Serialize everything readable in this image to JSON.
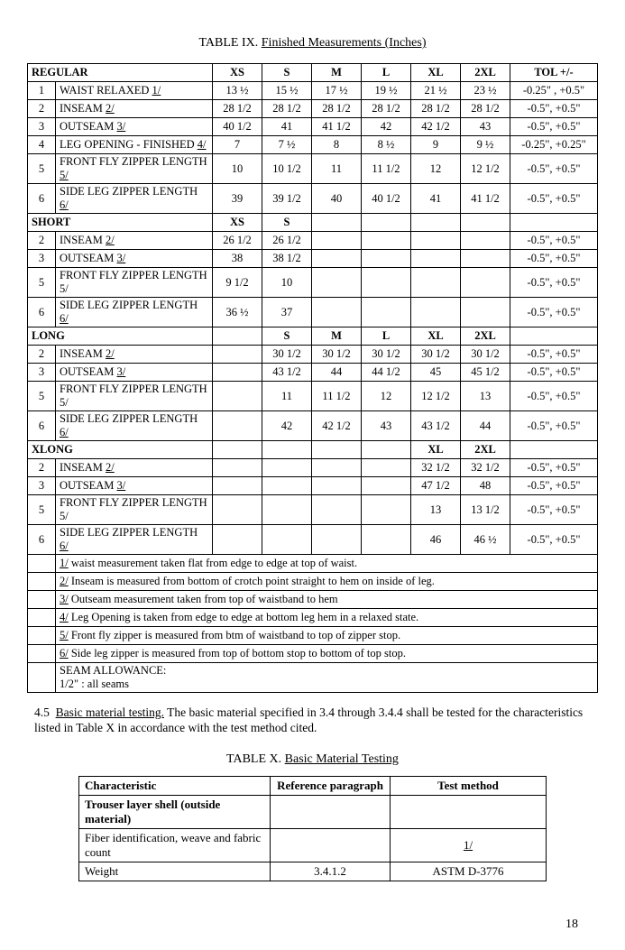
{
  "table9": {
    "title_prefix": "TABLE IX.",
    "title": "Finished Measurements (Inches)",
    "size_headers": [
      "XS",
      "S",
      "M",
      "L",
      "XL",
      "2XL"
    ],
    "tol_header": "TOL +/-",
    "sections": [
      {
        "name": "REGULAR",
        "show_sizes": [
          true,
          true,
          true,
          true,
          true,
          true
        ],
        "rows": [
          {
            "n": "1",
            "label": "WAIST RELAXED  1/",
            "uline": "1/",
            "v": [
              "13 ½",
              "15 ½",
              "17 ½",
              "19 ½",
              "21 ½",
              "23 ½"
            ],
            "tol": "-0.25\" , +0.5\""
          },
          {
            "n": "2",
            "label": "INSEAM    2/",
            "uline": "2/",
            "v": [
              "28 1/2",
              "28 1/2",
              "28 1/2",
              "28 1/2",
              "28 1/2",
              "28 1/2"
            ],
            "tol": "-0.5\", +0.5\""
          },
          {
            "n": "3",
            "label": "OUTSEAM   3/",
            "uline": "3/",
            "v": [
              "40 1/2",
              "41",
              "41 1/2",
              "42",
              "42 1/2",
              "43"
            ],
            "tol": "-0.5\", +0.5\""
          },
          {
            "n": "4",
            "label": "LEG OPENING  - FINISHED  4/",
            "uline": "4/",
            "v": [
              "7",
              "7 ½",
              "8",
              "8 ½",
              "9",
              "9 ½"
            ],
            "tol": "-0.25\", +0.25\""
          },
          {
            "n": "5",
            "label": "FRONT FLY ZIPPER LENGTH  5/",
            "uline": "5/",
            "v": [
              "10",
              "10 1/2",
              "11",
              "11 1/2",
              "12",
              "12 1/2"
            ],
            "tol": "-0.5\", +0.5\""
          },
          {
            "n": "6",
            "label": "SIDE LEG ZIPPER LENGTH  6/",
            "uline": "6/",
            "v": [
              "39",
              "39 1/2",
              "40",
              "40 1/2",
              "41",
              "41 1/2"
            ],
            "tol": "-0.5\", +0.5\""
          }
        ]
      },
      {
        "name": "SHORT",
        "show_sizes": [
          true,
          true,
          false,
          false,
          false,
          false
        ],
        "rows": [
          {
            "n": "2",
            "label": "INSEAM    2/",
            "uline": "2/",
            "v": [
              "26 1/2",
              "26 1/2",
              "",
              "",
              "",
              ""
            ],
            "tol": "-0.5\", +0.5\""
          },
          {
            "n": "3",
            "label": "OUTSEAM  3/",
            "uline": "3/",
            "v": [
              "38",
              "38 1/2",
              "",
              "",
              "",
              ""
            ],
            "tol": "-0.5\", +0.5\""
          },
          {
            "n": "5",
            "label": "FRONT FLY ZIPPER LENGTH  5/",
            "uline": "",
            "v": [
              "9 1/2",
              "10",
              "",
              "",
              "",
              ""
            ],
            "tol": "-0.5\", +0.5\""
          },
          {
            "n": "6",
            "label": "SIDE LEG ZIPPER LENGTH  6/",
            "uline": "6/",
            "v": [
              "36 ½",
              "37",
              "",
              "",
              "",
              ""
            ],
            "tol": "-0.5\", +0.5\""
          }
        ]
      },
      {
        "name": "LONG",
        "show_sizes": [
          false,
          true,
          true,
          true,
          true,
          true
        ],
        "rows": [
          {
            "n": "2",
            "label": "INSEAM    2/",
            "uline": "2/",
            "v": [
              "",
              "30 1/2",
              "30 1/2",
              "30 1/2",
              "30 1/2",
              "30 1/2"
            ],
            "tol": "-0.5\", +0.5\""
          },
          {
            "n": "3",
            "label": "OUTSEAM  3/",
            "uline": "3/",
            "v": [
              "",
              "43 1/2",
              "44",
              "44 1/2",
              "45",
              "45 1/2"
            ],
            "tol": "-0.5\", +0.5\""
          },
          {
            "n": "5",
            "label": "FRONT FLY ZIPPER LENGTH  5/",
            "uline": "",
            "v": [
              "",
              "11",
              "11 1/2",
              "12",
              "12 1/2",
              "13"
            ],
            "tol": "-0.5\", +0.5\""
          },
          {
            "n": "6",
            "label": "SIDE LEG ZIPPER LENGTH  6/",
            "uline": "6/",
            "v": [
              "",
              "42",
              "42 1/2",
              "43",
              "43 1/2",
              "44"
            ],
            "tol": "-0.5\", +0.5\""
          }
        ]
      },
      {
        "name": "XLONG",
        "show_sizes": [
          false,
          false,
          false,
          false,
          true,
          true
        ],
        "rows": [
          {
            "n": "2",
            "label": "INSEAM    2/",
            "uline": "2/",
            "v": [
              "",
              "",
              "",
              "",
              "32 1/2",
              "32 1/2"
            ],
            "tol": "-0.5\", +0.5\""
          },
          {
            "n": "3",
            "label": "OUTSEAM   3/",
            "uline": "3/",
            "v": [
              "",
              "",
              "",
              "",
              "47 1/2",
              "48"
            ],
            "tol": "-0.5\", +0.5\""
          },
          {
            "n": "5",
            "label": "FRONT FLY ZIPPER LENGTH  5/",
            "uline": "",
            "v": [
              "",
              "",
              "",
              "",
              "13",
              "13 1/2"
            ],
            "tol": "-0.5\", +0.5\""
          },
          {
            "n": "6",
            "label": "SIDE LEG ZIPPER LENGTH  6/",
            "uline": "6/",
            "v": [
              "",
              "",
              "",
              "",
              "46",
              "46 ½"
            ],
            "tol": "-0.5\", +0.5\""
          }
        ]
      }
    ],
    "notes": [
      "1/ waist measurement taken flat from edge to edge at top of waist.",
      "2/ Inseam is measured from bottom of crotch point straight to hem on inside of leg.",
      "3/ Outseam measurement taken from  top of  waistband to hem",
      "4/ Leg Opening is taken from edge to edge at bottom leg hem in a relaxed state.",
      "5/ Front fly zipper is measured from btm of waistband to top of zipper stop.",
      "6/ Side leg zipper is measured from top of bottom stop to bottom of top stop."
    ],
    "seam_allowance_label": "SEAM ALLOWANCE:",
    "seam_allowance_value": "1/2\" : all seams"
  },
  "paragraph": {
    "lead": "4.5",
    "head": "Basic material testing.",
    "body": "  The basic material specified in 3.4 through 3.4.4 shall be tested for the characteristics listed in Table X in accordance with the test method cited."
  },
  "table10": {
    "title_prefix": "TABLE X.",
    "title": "Basic Material Testing",
    "headers": [
      "Characteristic",
      "Reference paragraph",
      "Test method"
    ],
    "rows": [
      {
        "label": "Trouser layer shell (outside material)",
        "bold": true,
        "ref": "",
        "method": ""
      },
      {
        "label": "Fiber identification, weave and fabric count",
        "bold": false,
        "ref": "",
        "method": "1/",
        "method_uline": true
      },
      {
        "label": "Weight",
        "bold": false,
        "ref": "3.4.1.2",
        "method": "ASTM D-3776"
      }
    ]
  },
  "page_number": "18"
}
